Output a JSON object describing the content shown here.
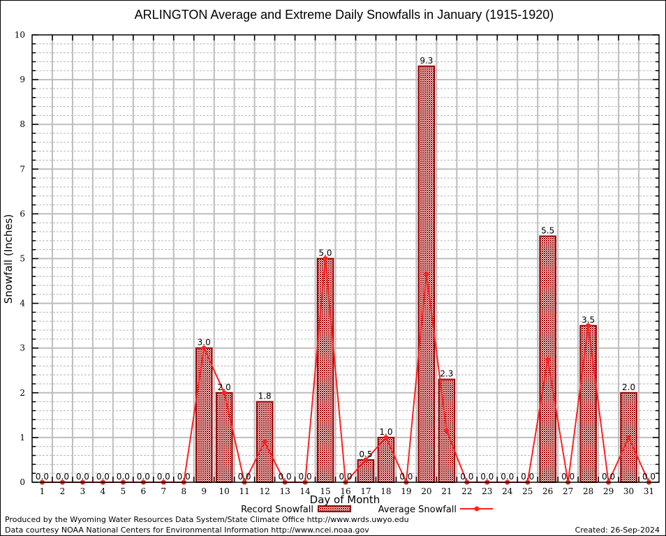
{
  "chart_data": {
    "type": "bar",
    "title": "ARLINGTON Average and Extreme Daily Snowfalls in January (1915-1920)",
    "xlabel": "Day of Month",
    "ylabel": "Snowfall (Inches)",
    "ylim": [
      0,
      10
    ],
    "yticks": [
      "0",
      "1",
      "2",
      "3",
      "4",
      "5",
      "6",
      "7",
      "8",
      "9",
      "10"
    ],
    "grid": true,
    "categories": [
      "1",
      "2",
      "3",
      "4",
      "5",
      "6",
      "7",
      "8",
      "9",
      "10",
      "11",
      "12",
      "13",
      "14",
      "15",
      "16",
      "17",
      "18",
      "19",
      "20",
      "21",
      "22",
      "23",
      "24",
      "25",
      "26",
      "27",
      "28",
      "29",
      "30",
      "31"
    ],
    "series": [
      {
        "name": "Record Snowfall",
        "type": "bar",
        "color": "#990000",
        "values": [
          0,
          0,
          0,
          0,
          0,
          0,
          0,
          0,
          3.0,
          2.0,
          0,
          1.8,
          0,
          0,
          5.0,
          0,
          0.5,
          1.0,
          0,
          9.3,
          2.3,
          0,
          0,
          0,
          0,
          5.5,
          0,
          3.5,
          0,
          2.0,
          0
        ],
        "labels": [
          "0.0",
          "0.0",
          "0.0",
          "0.0",
          "0.0",
          "0.0",
          "0.0",
          "0.0",
          "3.0",
          "2.0",
          "0.0",
          "1.8",
          "0.0",
          "0.0",
          "5.0",
          "0.0",
          "0.5",
          "1.0",
          "0.0",
          "9.3",
          "2.3",
          "0.0",
          "0.0",
          "0.0",
          "0.0",
          "5.5",
          "0.0",
          "3.5",
          "0.0",
          "2.0",
          "0.0"
        ]
      },
      {
        "name": "Average Snowfall",
        "type": "line",
        "color": "#ff2020",
        "values": [
          0,
          0,
          0,
          0,
          0,
          0,
          0,
          0,
          3.0,
          2.0,
          0,
          0.9,
          0,
          0,
          5.0,
          0,
          0.5,
          1.0,
          0,
          4.65,
          1.15,
          0,
          0,
          0,
          0,
          2.75,
          0,
          3.5,
          0,
          1.0,
          0
        ]
      }
    ],
    "legend": "bottom"
  },
  "footer": {
    "line1": "Produced by the Wyoming Water Resources Data System/State Climate Office http://www.wrds.uwyo.edu",
    "line2": "Data courtesy NOAA National Centers for Environmental Information http://www.ncei.noaa.gov",
    "created": "Created:  26-Sep-2024"
  }
}
